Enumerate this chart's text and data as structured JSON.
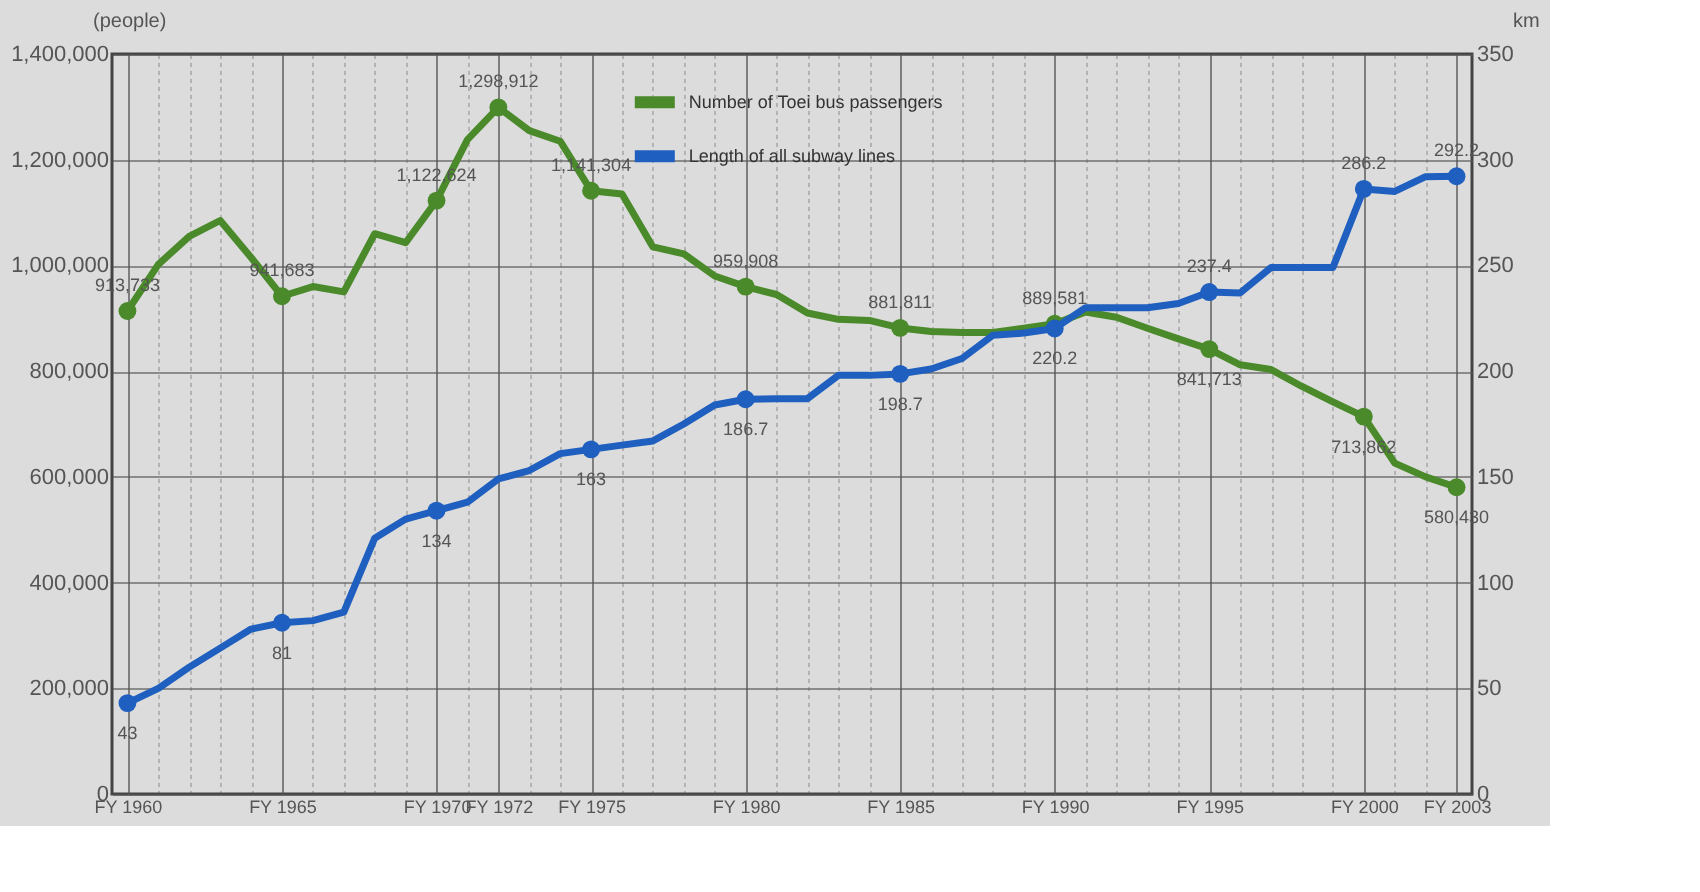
{
  "chart_data": {
    "type": "line",
    "ylabel": "(people)",
    "y2label": "km",
    "categories": [
      "FY 1960",
      null,
      null,
      null,
      null,
      "FY 1965",
      null,
      null,
      null,
      null,
      "FY 1970",
      null,
      "FY 1972",
      null,
      null,
      "FY 1975",
      null,
      null,
      null,
      null,
      "FY 1980",
      null,
      null,
      null,
      null,
      "FY 1985",
      null,
      null,
      null,
      null,
      "FY 1990",
      null,
      null,
      null,
      null,
      "FY 1995",
      null,
      null,
      null,
      null,
      "FY 2000",
      null,
      null,
      "FY 2003"
    ],
    "series": [
      {
        "name": "Number of Toei bus passengers",
        "color": "#4a8a2a",
        "values": [
          913733,
          1002000,
          1055000,
          1085000,
          1015000,
          941683,
          960000,
          950000,
          1060000,
          1043000,
          1122624,
          1238000,
          1298912,
          1255000,
          1235000,
          1141304,
          1135000,
          1035000,
          1022000,
          980000,
          959908,
          945000,
          910000,
          898000,
          896000,
          881811,
          875000,
          873000,
          873000,
          881000,
          889581,
          912000,
          902000,
          881000,
          861000,
          841713,
          812000,
          803000,
          771000,
          742000,
          713862,
          626000,
          600000,
          580430
        ],
        "value_labels": [
          "913,733",
          null,
          null,
          null,
          null,
          "941,683",
          null,
          null,
          null,
          null,
          "1,122,624",
          null,
          "1,298,912",
          null,
          null,
          "1,141,304",
          null,
          null,
          null,
          null,
          "959,908",
          null,
          null,
          null,
          null,
          "881,811",
          null,
          null,
          null,
          null,
          "889,581",
          null,
          null,
          null,
          null,
          "841,713",
          null,
          null,
          null,
          null,
          "713,862",
          null,
          null,
          "580,430"
        ]
      },
      {
        "name": "Length of all subway lines",
        "color": "#1f5fbf",
        "axis": "y2",
        "values": [
          43,
          50,
          60,
          69,
          78,
          81,
          82,
          86,
          121,
          130,
          134,
          138,
          149,
          153,
          161,
          163,
          165,
          167,
          175,
          184,
          186.7,
          187,
          187,
          198,
          198,
          198.7,
          201,
          206,
          217,
          218,
          220.2,
          230,
          230,
          230,
          232,
          237.4,
          237,
          249,
          249,
          249,
          286.2,
          285,
          292,
          292.2
        ],
        "value_labels": [
          "43",
          null,
          null,
          null,
          null,
          "81",
          null,
          null,
          null,
          null,
          "134",
          null,
          null,
          null,
          null,
          "163",
          null,
          null,
          null,
          null,
          "186.7",
          null,
          null,
          null,
          null,
          "198.7",
          null,
          null,
          null,
          null,
          "220.2",
          null,
          null,
          null,
          null,
          "237.4",
          null,
          null,
          null,
          null,
          "286.2",
          null,
          null,
          "292.2"
        ]
      }
    ],
    "ylim": [
      0,
      1400000
    ],
    "yticks": [
      0,
      {
        "value": 200000,
        "label": "200,000"
      },
      {
        "value": 400000,
        "label": "400,000"
      },
      {
        "value": 600000,
        "label": "600,000"
      },
      {
        "value": 800000,
        "label": "800,000"
      },
      {
        "value": 1000000,
        "label": "1,000,000"
      },
      {
        "value": 1200000,
        "label": "1,200,000"
      },
      {
        "value": 1400000,
        "label": "1,400,000"
      }
    ],
    "y2lim": [
      0,
      350
    ],
    "y2ticks": [
      0,
      50,
      100,
      150,
      200,
      250,
      300,
      350
    ],
    "grid": true,
    "legend": "top",
    "line_style": "solid"
  }
}
